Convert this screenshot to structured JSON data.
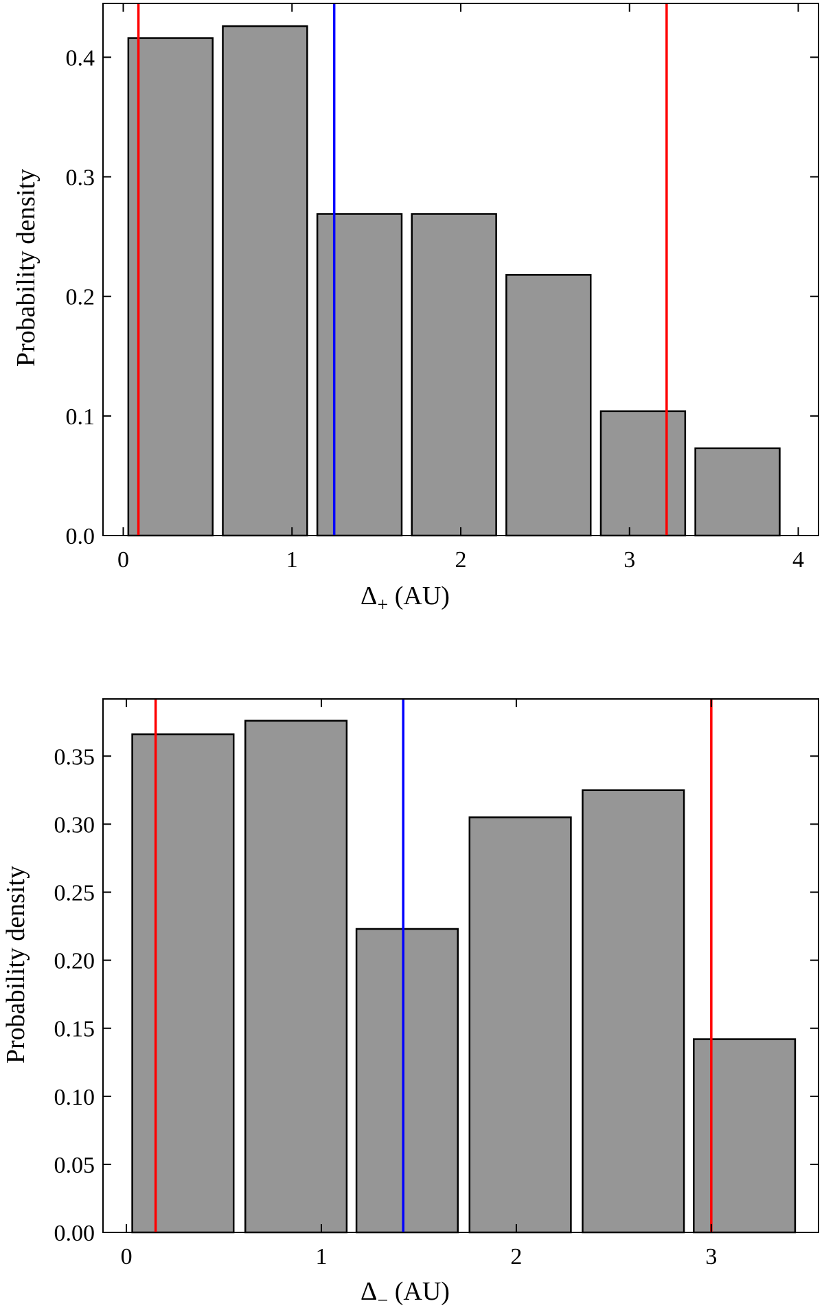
{
  "chart_data": [
    {
      "type": "bar",
      "title": "",
      "xlabel": "Δ₊ (AU)",
      "xlabel_symbol": "Δ",
      "xlabel_subscript": "+",
      "xlabel_unit": "(AU)",
      "ylabel": "Probability density",
      "xlim": [
        -0.12,
        4.12
      ],
      "ylim": [
        0,
        0.445
      ],
      "bin_width": 0.56,
      "bars": [
        {
          "x_left": 0.03,
          "x_right": 0.53,
          "value": 0.416
        },
        {
          "x_left": 0.59,
          "x_right": 1.09,
          "value": 0.426
        },
        {
          "x_left": 1.15,
          "x_right": 1.65,
          "value": 0.269
        },
        {
          "x_left": 1.71,
          "x_right": 2.21,
          "value": 0.269
        },
        {
          "x_left": 2.27,
          "x_right": 2.77,
          "value": 0.218
        },
        {
          "x_left": 2.83,
          "x_right": 3.33,
          "value": 0.104
        },
        {
          "x_left": 3.39,
          "x_right": 3.89,
          "value": 0.073
        }
      ],
      "xticks": [
        0,
        1,
        2,
        3,
        4
      ],
      "xtick_labels": [
        "0",
        "1",
        "2",
        "3",
        "4"
      ],
      "yticks": [
        0.0,
        0.1,
        0.2,
        0.3,
        0.4
      ],
      "ytick_labels": [
        "0.0",
        "0.1",
        "0.2",
        "0.3",
        "0.4"
      ],
      "vlines": [
        {
          "x": 0.09,
          "color": "#ff0000",
          "role": "lower bound"
        },
        {
          "x": 1.25,
          "color": "#0000ff",
          "role": "median"
        },
        {
          "x": 3.22,
          "color": "#ff0000",
          "role": "upper bound"
        }
      ],
      "bar_color": "#969696",
      "edge_color": "#000000"
    },
    {
      "type": "bar",
      "title": "",
      "xlabel": "Δ₋ (AU)",
      "xlabel_symbol": "Δ",
      "xlabel_subscript": "−",
      "xlabel_unit": "(AU)",
      "ylabel": "Probability density",
      "xlim": [
        -0.12,
        3.55
      ],
      "ylim": [
        0,
        0.392
      ],
      "bars": [
        {
          "x_left": 0.03,
          "x_right": 0.55,
          "value": 0.366
        },
        {
          "x_left": 0.61,
          "x_right": 1.13,
          "value": 0.376
        },
        {
          "x_left": 1.18,
          "x_right": 1.7,
          "value": 0.223
        },
        {
          "x_left": 1.76,
          "x_right": 2.28,
          "value": 0.305
        },
        {
          "x_left": 2.34,
          "x_right": 2.86,
          "value": 0.325
        },
        {
          "x_left": 2.91,
          "x_right": 3.43,
          "value": 0.142
        }
      ],
      "xticks": [
        0,
        1,
        2,
        3
      ],
      "xtick_labels": [
        "0",
        "1",
        "2",
        "3"
      ],
      "yticks": [
        0.0,
        0.05,
        0.1,
        0.15,
        0.2,
        0.25,
        0.3,
        0.35
      ],
      "ytick_labels": [
        "0.00",
        "0.05",
        "0.10",
        "0.15",
        "0.20",
        "0.25",
        "0.30",
        "0.35"
      ],
      "vlines": [
        {
          "x": 0.15,
          "color": "#ff0000",
          "role": "lower bound"
        },
        {
          "x": 1.42,
          "color": "#0000ff",
          "role": "median"
        },
        {
          "x": 3.0,
          "color": "#ff0000",
          "role": "upper bound"
        }
      ],
      "bar_color": "#969696",
      "edge_color": "#000000"
    }
  ]
}
